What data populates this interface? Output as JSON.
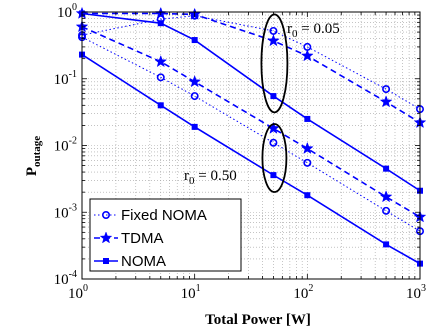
{
  "chart_data": {
    "type": "line",
    "title": "",
    "xlabel": "Total Power [W]",
    "ylabel_main": "P",
    "ylabel_sub": "outage",
    "xscale": "log",
    "yscale": "log",
    "xlim": [
      1,
      1000
    ],
    "ylim": [
      0.0001,
      1
    ],
    "x_ticks": [
      1,
      10,
      100,
      1000
    ],
    "y_ticks": [
      0.0001,
      0.001,
      0.01,
      0.1,
      1
    ],
    "x_tick_labels": [
      {
        "base": "10",
        "exp": "0"
      },
      {
        "base": "10",
        "exp": "1"
      },
      {
        "base": "10",
        "exp": "2"
      },
      {
        "base": "10",
        "exp": "3"
      }
    ],
    "y_tick_labels": [
      {
        "base": "10",
        "exp": "-4"
      },
      {
        "base": "10",
        "exp": "-3"
      },
      {
        "base": "10",
        "exp": "-2"
      },
      {
        "base": "10",
        "exp": "-1"
      },
      {
        "base": "10",
        "exp": "0"
      }
    ],
    "grid": true,
    "legend_position": "bottom-left",
    "colors": {
      "series": "#0000ff",
      "axis": "#000000",
      "grid": "#a0a0a0"
    },
    "legend": [
      {
        "name": "Fixed NOMA",
        "marker": "circle",
        "style": "dotted"
      },
      {
        "name": "TDMA",
        "marker": "star",
        "style": "dashed"
      },
      {
        "name": "NOMA",
        "marker": "square",
        "style": "solid"
      }
    ],
    "annotations": [
      {
        "text": "r",
        "sub": "0",
        "rest": " = 0.05",
        "x": 48,
        "y": 0.35
      },
      {
        "text": "r",
        "sub": "0",
        "rest": " = 0.50",
        "x": 48,
        "y": 0.0045
      }
    ],
    "x": [
      1,
      5,
      10,
      50,
      100,
      500,
      1000
    ],
    "series": [
      {
        "group": "r0 = 0.05",
        "type": "Fixed NOMA",
        "marker": "circle",
        "style": "dotted",
        "values": [
          0.45,
          0.78,
          0.88,
          0.52,
          0.3,
          0.07,
          0.035
        ]
      },
      {
        "group": "r0 = 0.05",
        "type": "TDMA",
        "marker": "star",
        "style": "dashed",
        "values": [
          0.95,
          0.95,
          0.92,
          0.37,
          0.22,
          0.045,
          0.022
        ]
      },
      {
        "group": "r0 = 0.05",
        "type": "NOMA",
        "marker": "square",
        "style": "solid",
        "values": [
          0.95,
          0.68,
          0.38,
          0.055,
          0.025,
          0.0045,
          0.0021
        ]
      },
      {
        "group": "r0 = 0.50",
        "type": "Fixed NOMA",
        "marker": "circle",
        "style": "dotted",
        "values": [
          0.42,
          0.105,
          0.055,
          0.011,
          0.0055,
          0.00105,
          0.00052
        ]
      },
      {
        "group": "r0 = 0.50",
        "type": "TDMA",
        "marker": "star",
        "style": "dashed",
        "values": [
          0.6,
          0.18,
          0.09,
          0.018,
          0.009,
          0.0017,
          0.00085
        ]
      },
      {
        "group": "r0 = 0.50",
        "type": "NOMA",
        "marker": "square",
        "style": "solid",
        "values": [
          0.23,
          0.04,
          0.019,
          0.0036,
          0.0018,
          0.00033,
          0.00017
        ]
      }
    ]
  }
}
